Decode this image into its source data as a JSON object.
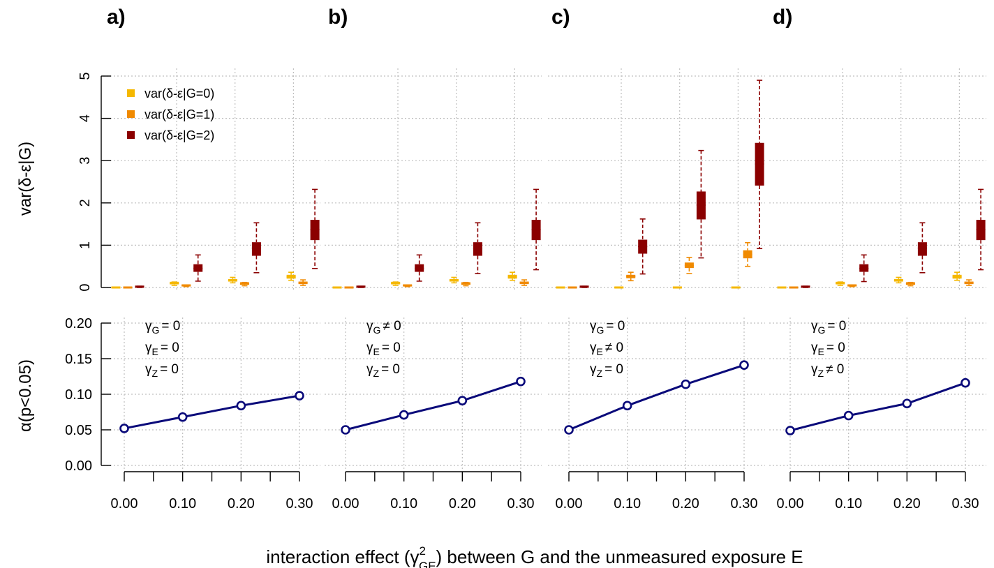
{
  "colors": {
    "g0": "#F5B800",
    "g1": "#F08A00",
    "g2": "#8B0000",
    "line": "#0A0A7A",
    "grid": "#BFBFBF"
  },
  "xlabel_prefix": "interaction effect (",
  "xlabel_gamma": "γ",
  "xlabel_sup": "2",
  "xlabel_sub": "GE",
  "xlabel_suffix": ") between G and the unmeasured exposure E",
  "top_ylabel": "var(δ-ε|G)",
  "bottom_ylabel": "α(p<0.05)",
  "chart_data": [
    {
      "panel": "a)",
      "type": "box",
      "xlabel": "interaction effect (γ²GE) between G and the unmeasured exposure E",
      "ylabel": "var(δ-ε|G)",
      "ylim": [
        0,
        5
      ],
      "yticks": [
        0,
        1,
        2,
        3,
        4,
        5
      ],
      "grid": true,
      "legend_position": "top-left",
      "categories": [
        0.0,
        0.1,
        0.2,
        0.3
      ],
      "series": [
        {
          "name": "var(δ-ε|G=0)",
          "boxes": [
            {
              "x": 0.0,
              "min": 0.0,
              "q1": 0.0,
              "median": 0.0,
              "q3": 0.0,
              "max": 0.0
            },
            {
              "x": 0.1,
              "min": 0.05,
              "q1": 0.07,
              "median": 0.09,
              "q3": 0.11,
              "max": 0.13
            },
            {
              "x": 0.2,
              "min": 0.11,
              "q1": 0.14,
              "median": 0.17,
              "q3": 0.2,
              "max": 0.24
            },
            {
              "x": 0.3,
              "min": 0.17,
              "q1": 0.21,
              "median": 0.25,
              "q3": 0.3,
              "max": 0.36
            }
          ]
        },
        {
          "name": "var(δ-ε|G=1)",
          "boxes": [
            {
              "x": 0.0,
              "min": 0.0,
              "q1": 0.0,
              "median": 0.0,
              "q3": 0.0,
              "max": 0.0
            },
            {
              "x": 0.1,
              "min": 0.02,
              "q1": 0.03,
              "median": 0.04,
              "q3": 0.05,
              "max": 0.06
            },
            {
              "x": 0.2,
              "min": 0.04,
              "q1": 0.06,
              "median": 0.08,
              "q3": 0.1,
              "max": 0.12
            },
            {
              "x": 0.3,
              "min": 0.05,
              "q1": 0.08,
              "median": 0.11,
              "q3": 0.14,
              "max": 0.18
            }
          ]
        },
        {
          "name": "var(δ-ε|G=2)",
          "boxes": [
            {
              "x": 0.0,
              "min": 0.0,
              "q1": 0.0,
              "median": 0.01,
              "q3": 0.02,
              "max": 0.03
            },
            {
              "x": 0.1,
              "min": 0.15,
              "q1": 0.37,
              "median": 0.45,
              "q3": 0.55,
              "max": 0.77
            },
            {
              "x": 0.2,
              "min": 0.35,
              "q1": 0.75,
              "median": 0.93,
              "q3": 1.07,
              "max": 1.53
            },
            {
              "x": 0.3,
              "min": 0.45,
              "q1": 1.12,
              "median": 1.37,
              "q3": 1.6,
              "max": 2.32
            }
          ]
        }
      ],
      "alpha": {
        "x": [
          0.0,
          0.1,
          0.2,
          0.3
        ],
        "y": [
          0.052,
          0.068,
          0.084,
          0.098
        ],
        "ylim": [
          0,
          0.2
        ],
        "yticks": [
          0.0,
          0.05,
          0.1,
          0.15,
          0.2
        ]
      },
      "annotation": [
        {
          "symbol": "γ",
          "sub": "G",
          "rel": "= 0"
        },
        {
          "symbol": "γ",
          "sub": "E",
          "rel": "= 0"
        },
        {
          "symbol": "γ",
          "sub": "Z",
          "rel": "= 0"
        }
      ]
    },
    {
      "panel": "b)",
      "type": "box",
      "ylim": [
        0,
        5
      ],
      "categories": [
        0.0,
        0.1,
        0.2,
        0.3
      ],
      "series": [
        {
          "name": "var(δ-ε|G=0)",
          "boxes": [
            {
              "x": 0.0,
              "min": 0.0,
              "q1": 0.0,
              "median": 0.0,
              "q3": 0.0,
              "max": 0.0
            },
            {
              "x": 0.1,
              "min": 0.05,
              "q1": 0.07,
              "median": 0.09,
              "q3": 0.11,
              "max": 0.13
            },
            {
              "x": 0.2,
              "min": 0.11,
              "q1": 0.14,
              "median": 0.17,
              "q3": 0.2,
              "max": 0.24
            },
            {
              "x": 0.3,
              "min": 0.17,
              "q1": 0.21,
              "median": 0.25,
              "q3": 0.3,
              "max": 0.36
            }
          ]
        },
        {
          "name": "var(δ-ε|G=1)",
          "boxes": [
            {
              "x": 0.0,
              "min": 0.0,
              "q1": 0.0,
              "median": 0.0,
              "q3": 0.0,
              "max": 0.0
            },
            {
              "x": 0.1,
              "min": 0.02,
              "q1": 0.03,
              "median": 0.04,
              "q3": 0.05,
              "max": 0.06
            },
            {
              "x": 0.2,
              "min": 0.04,
              "q1": 0.06,
              "median": 0.08,
              "q3": 0.1,
              "max": 0.12
            },
            {
              "x": 0.3,
              "min": 0.05,
              "q1": 0.08,
              "median": 0.11,
              "q3": 0.14,
              "max": 0.18
            }
          ]
        },
        {
          "name": "var(δ-ε|G=2)",
          "boxes": [
            {
              "x": 0.0,
              "min": 0.0,
              "q1": 0.0,
              "median": 0.01,
              "q3": 0.02,
              "max": 0.03
            },
            {
              "x": 0.1,
              "min": 0.15,
              "q1": 0.37,
              "median": 0.45,
              "q3": 0.55,
              "max": 0.77
            },
            {
              "x": 0.2,
              "min": 0.33,
              "q1": 0.75,
              "median": 0.92,
              "q3": 1.07,
              "max": 1.53
            },
            {
              "x": 0.3,
              "min": 0.42,
              "q1": 1.12,
              "median": 1.37,
              "q3": 1.6,
              "max": 2.32
            }
          ]
        }
      ],
      "alpha": {
        "x": [
          0.0,
          0.1,
          0.2,
          0.3
        ],
        "y": [
          0.05,
          0.071,
          0.091,
          0.118
        ],
        "ylim": [
          0,
          0.2
        ]
      },
      "annotation": [
        {
          "symbol": "γ",
          "sub": "G",
          "rel": "≠ 0"
        },
        {
          "symbol": "γ",
          "sub": "E",
          "rel": "= 0"
        },
        {
          "symbol": "γ",
          "sub": "Z",
          "rel": "= 0"
        }
      ]
    },
    {
      "panel": "c)",
      "type": "box",
      "ylim": [
        0,
        5
      ],
      "categories": [
        0.0,
        0.1,
        0.2,
        0.3
      ],
      "series": [
        {
          "name": "var(δ-ε|G=0)",
          "boxes": [
            {
              "x": 0.0,
              "min": 0.0,
              "q1": 0.0,
              "median": 0.0,
              "q3": 0.0,
              "max": 0.0
            },
            {
              "x": 0.1,
              "min": 0.0,
              "q1": 0.0,
              "median": 0.0,
              "q3": 0.0,
              "max": 0.0
            },
            {
              "x": 0.2,
              "min": 0.0,
              "q1": 0.0,
              "median": 0.0,
              "q3": 0.0,
              "max": 0.0
            },
            {
              "x": 0.3,
              "min": 0.0,
              "q1": 0.0,
              "median": 0.0,
              "q3": 0.0,
              "max": 0.0
            }
          ]
        },
        {
          "name": "var(δ-ε|G=1)",
          "boxes": [
            {
              "x": 0.0,
              "min": 0.0,
              "q1": 0.0,
              "median": 0.0,
              "q3": 0.0,
              "max": 0.0
            },
            {
              "x": 0.1,
              "min": 0.16,
              "q1": 0.22,
              "median": 0.26,
              "q3": 0.3,
              "max": 0.36
            },
            {
              "x": 0.2,
              "min": 0.33,
              "q1": 0.46,
              "median": 0.52,
              "q3": 0.59,
              "max": 0.71
            },
            {
              "x": 0.3,
              "min": 0.5,
              "q1": 0.69,
              "median": 0.78,
              "q3": 0.88,
              "max": 1.06
            }
          ]
        },
        {
          "name": "var(δ-ε|G=2)",
          "boxes": [
            {
              "x": 0.0,
              "min": 0.0,
              "q1": 0.0,
              "median": 0.01,
              "q3": 0.02,
              "max": 0.03
            },
            {
              "x": 0.1,
              "min": 0.32,
              "q1": 0.8,
              "median": 0.97,
              "q3": 1.13,
              "max": 1.62
            },
            {
              "x": 0.2,
              "min": 0.7,
              "q1": 1.61,
              "median": 1.95,
              "q3": 2.27,
              "max": 3.24
            },
            {
              "x": 0.3,
              "min": 0.92,
              "q1": 2.41,
              "median": 2.92,
              "q3": 3.42,
              "max": 4.9
            }
          ]
        }
      ],
      "alpha": {
        "x": [
          0.0,
          0.1,
          0.2,
          0.3
        ],
        "y": [
          0.05,
          0.084,
          0.114,
          0.141
        ],
        "ylim": [
          0,
          0.2
        ]
      },
      "annotation": [
        {
          "symbol": "γ",
          "sub": "G",
          "rel": "= 0"
        },
        {
          "symbol": "γ",
          "sub": "E",
          "rel": "≠ 0"
        },
        {
          "symbol": "γ",
          "sub": "Z",
          "rel": "= 0"
        }
      ]
    },
    {
      "panel": "d)",
      "type": "box",
      "ylim": [
        0,
        5
      ],
      "categories": [
        0.0,
        0.1,
        0.2,
        0.3
      ],
      "series": [
        {
          "name": "var(δ-ε|G=0)",
          "boxes": [
            {
              "x": 0.0,
              "min": 0.0,
              "q1": 0.0,
              "median": 0.0,
              "q3": 0.0,
              "max": 0.0
            },
            {
              "x": 0.1,
              "min": 0.05,
              "q1": 0.07,
              "median": 0.09,
              "q3": 0.11,
              "max": 0.13
            },
            {
              "x": 0.2,
              "min": 0.11,
              "q1": 0.14,
              "median": 0.17,
              "q3": 0.2,
              "max": 0.24
            },
            {
              "x": 0.3,
              "min": 0.17,
              "q1": 0.21,
              "median": 0.25,
              "q3": 0.3,
              "max": 0.36
            }
          ]
        },
        {
          "name": "var(δ-ε|G=1)",
          "boxes": [
            {
              "x": 0.0,
              "min": 0.0,
              "q1": 0.0,
              "median": 0.0,
              "q3": 0.0,
              "max": 0.0
            },
            {
              "x": 0.1,
              "min": 0.02,
              "q1": 0.03,
              "median": 0.04,
              "q3": 0.05,
              "max": 0.06
            },
            {
              "x": 0.2,
              "min": 0.04,
              "q1": 0.06,
              "median": 0.08,
              "q3": 0.1,
              "max": 0.12
            },
            {
              "x": 0.3,
              "min": 0.05,
              "q1": 0.08,
              "median": 0.11,
              "q3": 0.14,
              "max": 0.18
            }
          ]
        },
        {
          "name": "var(δ-ε|G=2)",
          "boxes": [
            {
              "x": 0.0,
              "min": 0.0,
              "q1": 0.0,
              "median": 0.01,
              "q3": 0.02,
              "max": 0.03
            },
            {
              "x": 0.1,
              "min": 0.14,
              "q1": 0.37,
              "median": 0.45,
              "q3": 0.55,
              "max": 0.77
            },
            {
              "x": 0.2,
              "min": 0.35,
              "q1": 0.75,
              "median": 0.93,
              "q3": 1.07,
              "max": 1.53
            },
            {
              "x": 0.3,
              "min": 0.42,
              "q1": 1.12,
              "median": 1.37,
              "q3": 1.6,
              "max": 2.32
            }
          ]
        }
      ],
      "alpha": {
        "x": [
          0.0,
          0.1,
          0.2,
          0.3
        ],
        "y": [
          0.049,
          0.07,
          0.087,
          0.116
        ],
        "ylim": [
          0,
          0.2
        ]
      },
      "annotation": [
        {
          "symbol": "γ",
          "sub": "G",
          "rel": "= 0"
        },
        {
          "symbol": "γ",
          "sub": "E",
          "rel": "= 0"
        },
        {
          "symbol": "γ",
          "sub": "Z",
          "rel": "≠ 0"
        }
      ]
    }
  ],
  "top_yticks": [
    "0",
    "1",
    "2",
    "3",
    "4",
    "5"
  ],
  "bottom_yticks": [
    "0.00",
    "0.05",
    "0.10",
    "0.15",
    "0.20"
  ],
  "xtick_labels": [
    "0.00",
    "0.10",
    "0.20",
    "0.30"
  ],
  "legend": [
    {
      "label": "var(δ-ε|G=0)",
      "color_key": "g0"
    },
    {
      "label": "var(δ-ε|G=1)",
      "color_key": "g1"
    },
    {
      "label": "var(δ-ε|G=2)",
      "color_key": "g2"
    }
  ]
}
